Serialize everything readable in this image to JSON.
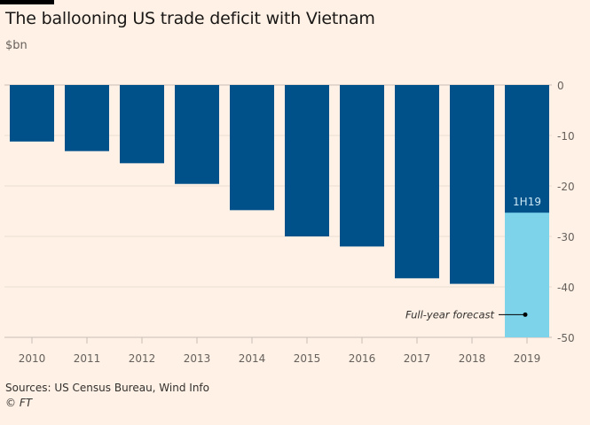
{
  "header": {
    "title": "The ballooning US trade deficit with Vietnam",
    "unit": "$bn"
  },
  "chart_data": {
    "type": "bar",
    "title": "The ballooning US trade deficit with Vietnam",
    "ylabel": "$bn",
    "categories": [
      "2010",
      "2011",
      "2012",
      "2013",
      "2014",
      "2015",
      "2016",
      "2017",
      "2018",
      "2019"
    ],
    "series": [
      {
        "name": "1H19",
        "values": [
          -11.2,
          -13.1,
          -15.5,
          -19.6,
          -24.8,
          -30.0,
          -32.0,
          -38.3,
          -39.4,
          -25.3
        ],
        "color": "#00508a"
      },
      {
        "name": "Full-year forecast",
        "values": [
          null,
          null,
          null,
          null,
          null,
          null,
          null,
          null,
          null,
          -50.0
        ],
        "color": "#7dd4ea"
      }
    ],
    "yticks": [
      0,
      -10,
      -20,
      -30,
      -40,
      -50
    ],
    "ytick_labels": [
      "0",
      "-10",
      "-20",
      "-30",
      "-40",
      "-50"
    ],
    "ylim": [
      -50,
      0
    ],
    "grid": true,
    "annotations": [
      "1H19",
      "Full-year forecast"
    ]
  },
  "footer": {
    "sources": "Sources: US Census Bureau, Wind Info",
    "credit": "© FT"
  }
}
